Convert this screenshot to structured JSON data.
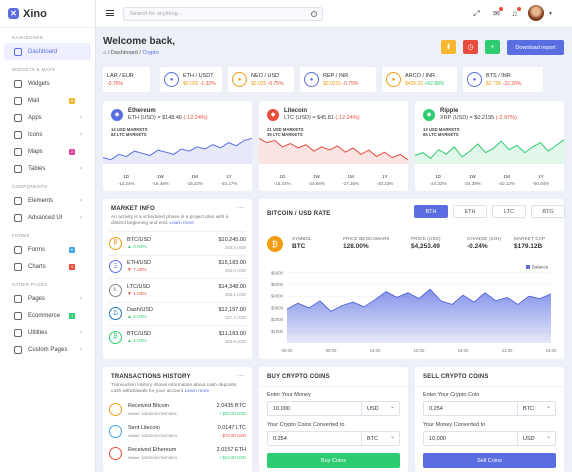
{
  "app": {
    "name": "Xino"
  },
  "sidebar": {
    "sections": [
      {
        "title": "DASHBOARD",
        "items": [
          {
            "label": "Dashboard",
            "active": true
          }
        ]
      },
      {
        "title": "WIDGETS & MAPS",
        "items": [
          {
            "label": "Widgets"
          },
          {
            "label": "Mail",
            "badge": "5",
            "badge_color": "#f5b82e"
          },
          {
            "label": "Apps",
            "chevron": true
          },
          {
            "label": "Icons",
            "chevron": true
          },
          {
            "label": "Maps",
            "badge": "2",
            "badge_color": "#e84393"
          },
          {
            "label": "Tables",
            "chevron": true
          }
        ]
      },
      {
        "title": "COMPONENTS",
        "items": [
          {
            "label": "Elements",
            "chevron": true
          },
          {
            "label": "Advanced UI",
            "chevron": true
          }
        ]
      },
      {
        "title": "FORMS",
        "items": [
          {
            "label": "Forms",
            "badge": "6",
            "badge_color": "#3da5f4"
          },
          {
            "label": "Charts",
            "badge": "9",
            "badge_color": "#e74c3c"
          }
        ]
      },
      {
        "title": "OTHER PAGES",
        "items": [
          {
            "label": "Pages",
            "chevron": true
          },
          {
            "label": "Ecommerce",
            "badge": "4",
            "badge_color": "#2ecc71"
          },
          {
            "label": "Utilities",
            "chevron": true
          },
          {
            "label": "Custom Pages",
            "chevron": true
          }
        ]
      }
    ]
  },
  "topbar": {
    "search_placeholder": "Search for anything..."
  },
  "header": {
    "title": "Welcome back,",
    "breadcrumb_home": "Dashboard",
    "breadcrumb_current": "Crypto",
    "download_label": "Download report"
  },
  "tickers": [
    {
      "pair": "LAR / EUR",
      "price": "",
      "change": "-0.75%",
      "color": "#f39c12"
    },
    {
      "pair": "ETH / USDT",
      "price": "$0.025",
      "change": "-1.32%",
      "color": "#5b6ee1"
    },
    {
      "pair": "NEO / USD",
      "price": "$0.025",
      "change": "-0.75%",
      "color": "#f39c12"
    },
    {
      "pair": "REP / INR",
      "price": "$0.0215",
      "change": "-0.75%",
      "color": "#5b6ee1"
    },
    {
      "pair": "ARCO / INR",
      "price": "$425.25",
      "change": "+52.88%",
      "color": "#f39c12"
    },
    {
      "pair": "BTS / INR",
      "price": "$2.706",
      "change": "-22.26%",
      "color": "#5b6ee1"
    }
  ],
  "coin_cards": [
    {
      "name": "Ethereum",
      "price_label": "ETH (USD) = $148.46",
      "change": "(-12.24%)",
      "m1": "14 USD MARKETS",
      "m2": "82 LTC MARKETS",
      "color": "#5b6ee1",
      "periods": [
        {
          "label": "1D",
          "value": "-12.24%"
        },
        {
          "label": "1W",
          "value": "-16.48%"
        },
        {
          "label": "1M",
          "value": "-15.22%"
        },
        {
          "label": "1Y",
          "value": "-40.17%"
        }
      ],
      "series": [
        30,
        28,
        33,
        31,
        36,
        34,
        32,
        37,
        35,
        33,
        38,
        36,
        40,
        38,
        42,
        39,
        44,
        41,
        46,
        48
      ]
    },
    {
      "name": "Litecoin",
      "price_label": "LTC (USD) = $45.81",
      "change": "(-12.24%)",
      "m1": "21 USD MARKETS",
      "m2": "35 LTC MARKETS",
      "color": "#e74c3c",
      "periods": [
        {
          "label": "1D",
          "value": "-15.24%"
        },
        {
          "label": "1W",
          "value": "-24.68%"
        },
        {
          "label": "1M",
          "value": "-17.35%"
        },
        {
          "label": "1Y",
          "value": "-30.23%"
        }
      ],
      "series": [
        42,
        38,
        40,
        34,
        37,
        33,
        36,
        30,
        34,
        31,
        35,
        29,
        33,
        27,
        31,
        25,
        29,
        24,
        27,
        22
      ]
    },
    {
      "name": "Ripple",
      "price_label": "XRP (USD) = $0.2195",
      "change": "(-2.97%)",
      "m1": "13 USD MARKETS",
      "m2": "65 LTC MARKETS",
      "color": "#2ecc71",
      "periods": [
        {
          "label": "1D",
          "value": "-24.32%"
        },
        {
          "label": "1W",
          "value": "-24.39%"
        },
        {
          "label": "1M",
          "value": "-42.12%"
        },
        {
          "label": "1Y",
          "value": "-50.04%"
        }
      ],
      "series": [
        34,
        36,
        32,
        38,
        35,
        40,
        33,
        37,
        42,
        36,
        39,
        44,
        38,
        41,
        36,
        40,
        43,
        37,
        41,
        45
      ]
    }
  ],
  "market_info": {
    "title": "MARKET INFO",
    "desc": "An activity is a scheduled phase in a project plan with a distinct beginning and end.",
    "learn": "Learn more",
    "rows": [
      {
        "pair": "BTC/USD",
        "change": "2.04%",
        "up": true,
        "price": "$10,245.00",
        "vol": "340.5 USD",
        "color": "#f39c12",
        "symbol": "₿"
      },
      {
        "pair": "ETH/USD",
        "change": "7.25%",
        "up": false,
        "price": "$15,183.00",
        "vol": "283.0 USD",
        "color": "#5b6ee1",
        "symbol": "Ξ"
      },
      {
        "pair": "LTC/USD",
        "change": "1.04%",
        "up": false,
        "price": "$14,348.00",
        "vol": "368.2 USD",
        "color": "#888888",
        "symbol": "Ł"
      },
      {
        "pair": "Dash/USD",
        "change": "2.04%",
        "up": true,
        "price": "$12,157.00",
        "vol": "127.3 USD",
        "color": "#1c75bc",
        "symbol": "D"
      },
      {
        "pair": "BTC/USD",
        "change": "1.04%",
        "up": true,
        "price": "$11,183.00",
        "vol": "163.8 USD",
        "color": "#2ecc71",
        "symbol": "₿"
      }
    ]
  },
  "btc_chart": {
    "title": "BITCOIN / USD RATE",
    "tabs": [
      "BTH",
      "ETH",
      "LTC",
      "BTG"
    ],
    "active_tab": "BTH",
    "symbol_label": "SYMBOL",
    "symbol": "BTC",
    "stats": [
      {
        "label": "PRICE BENCHMARK",
        "value": "128.00%"
      },
      {
        "label": "PRICE (USD)",
        "value": "$4,253.49"
      },
      {
        "label": "CHANGE (24H)",
        "value": "-0.24%"
      },
      {
        "label": "MARKET CAP",
        "value": "$179.12B"
      }
    ],
    "legend": "Balance"
  },
  "chart_data": {
    "type": "area",
    "title": "",
    "legend": [
      "Balance"
    ],
    "x": [
      "06:00",
      "07:00",
      "08:00",
      "09:00",
      "10:00",
      "11:00",
      "12:00",
      "13:00",
      "14:00",
      "15:00",
      "16:00",
      "17:00",
      "18:00",
      "19:00",
      "20:00",
      "21:00",
      "22:00",
      "23:00",
      "24:00",
      "01:00",
      "02:00",
      "03:00",
      "04:00",
      "05:00",
      "06:00"
    ],
    "xticks": [
      "06:00",
      "09:00",
      "12:00",
      "15:00",
      "18:00",
      "21:00",
      "24:00"
    ],
    "yticks": [
      "$1000",
      "$2000",
      "$3000",
      "$4000",
      "$5000",
      "$6000"
    ],
    "series": [
      {
        "name": "Balance",
        "values": [
          2900,
          3400,
          3000,
          3600,
          2700,
          3200,
          3500,
          3100,
          3700,
          4400,
          3900,
          4300,
          3800,
          4600,
          3600,
          3300,
          4100,
          3500,
          4300,
          3600,
          3900,
          3300,
          4000,
          3800,
          4200
        ]
      }
    ],
    "ylim": [
      0,
      6500
    ]
  },
  "transactions": {
    "title": "TRANSACTIONS HISTORY",
    "desc": "Transaction History shows information about cash deposits, cash withdrawals for your account",
    "learn": "Learn more",
    "rows": [
      {
        "label": "Received Bitcoin",
        "wallet": "Wallet: 33E3D4EYWZXB01",
        "amount": "2.0435 BTC",
        "usd": "+ $20.00 USD",
        "color": "#f39c12",
        "positive": true
      },
      {
        "label": "Sent Litecoin",
        "wallet": "Wallet: 33E3D4EYWZXB03",
        "amount": "0.0147 LTC",
        "usd": "- $72.00 USD",
        "color": "#3da5f4",
        "positive": false
      },
      {
        "label": "Received Ethereum",
        "wallet": "Wallet: 33E3D4EYWZXB03",
        "amount": "2.0157 ETH",
        "usd": "+ $24.00 USD",
        "color": "#e74c3c",
        "positive": true
      }
    ]
  },
  "buy": {
    "title": "BUY CRYPTO COINS",
    "label1": "Enter Your Money",
    "value1": "10,000",
    "cur1": "USD",
    "label2": "Your Crypto Coins Converted to",
    "value2": "0.254",
    "cur2": "BTC",
    "button": "Buy Coins"
  },
  "sell": {
    "title": "SELL CRYPTO COINS",
    "label1": "Enter Your Crypto Coin",
    "value1": "0.254",
    "cur1": "BTC",
    "label2": "Your Money Converted to",
    "value2": "10,000",
    "cur2": "USD",
    "button": "Sell Coins"
  }
}
